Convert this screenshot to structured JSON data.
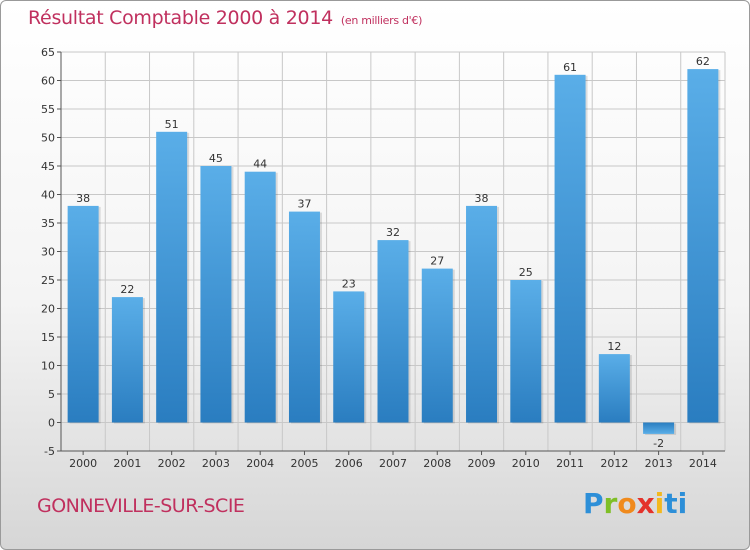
{
  "header": {
    "title": "Résultat Comptable 2000 à 2014",
    "subtitle": "(en milliers d'€)"
  },
  "footer": {
    "commune": "GONNEVILLE-SUR-SCIE",
    "logo_letters": [
      "P",
      "r",
      "o",
      "x",
      "i",
      "t",
      "i"
    ]
  },
  "colors": {
    "title": "#c0305e",
    "bar_light": "#5aaee8",
    "bar_dark": "#2a7dc0",
    "grid": "#c8c8c8"
  },
  "chart_data": {
    "type": "bar",
    "title": "Résultat Comptable 2000 à 2014",
    "subtitle": "(en milliers d'€)",
    "categories": [
      "2000",
      "2001",
      "2002",
      "2003",
      "2004",
      "2005",
      "2006",
      "2007",
      "2008",
      "2009",
      "2010",
      "2011",
      "2012",
      "2013",
      "2014"
    ],
    "values": [
      38,
      22,
      51,
      45,
      44,
      37,
      23,
      32,
      27,
      38,
      25,
      61,
      12,
      -2,
      62
    ],
    "ylim": [
      -5,
      65
    ],
    "yticks": [
      -5,
      0,
      5,
      10,
      15,
      20,
      25,
      30,
      35,
      40,
      45,
      50,
      55,
      60,
      65
    ],
    "grid": true,
    "legend": "none",
    "data_labels": true
  }
}
